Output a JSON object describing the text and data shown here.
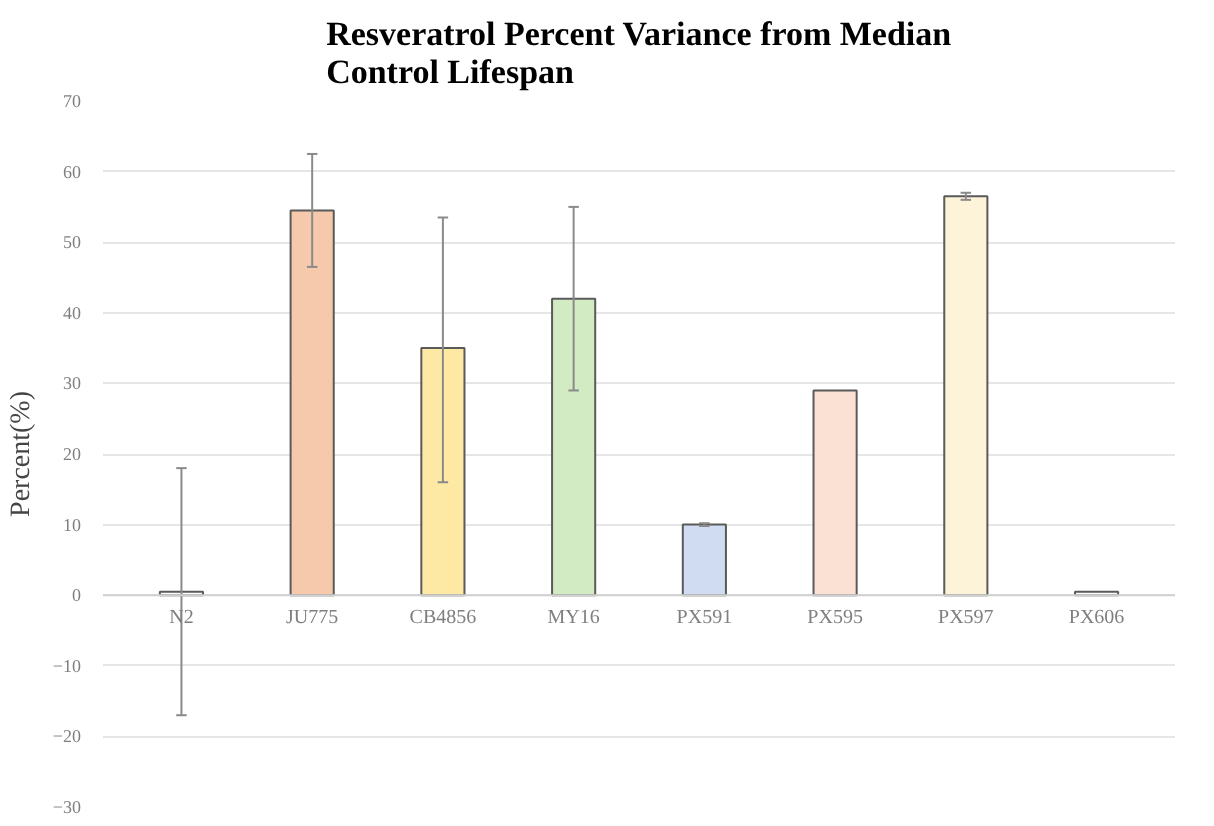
{
  "chart_data": {
    "type": "bar",
    "title": "Resveratrol Percent Variance from Median\nControl Lifespan",
    "ylabel": "Percent(%)",
    "categories": [
      "N2",
      "JU775",
      "CB4856",
      "MY16",
      "PX591",
      "PX595",
      "PX597",
      "PX606"
    ],
    "values": [
      0.5,
      54.5,
      35,
      42,
      10,
      29,
      56.5,
      0.5
    ],
    "errors": [
      [
        -17,
        18
      ],
      [
        46.5,
        62.5
      ],
      [
        16,
        53.5
      ],
      [
        29,
        55
      ],
      [
        9.8,
        10.2
      ],
      null,
      [
        56,
        57
      ],
      null
    ],
    "colors": [
      "#ffffff",
      "#f6c9ad",
      "#fde9a3",
      "#d3ebc2",
      "#cfdcf2",
      "#fbe1d3",
      "#fdf3d8",
      "#ffffff"
    ],
    "ylim": [
      -30,
      70
    ],
    "yticks": [
      -30,
      -20,
      -10,
      0,
      10,
      20,
      30,
      40,
      50,
      60,
      70
    ],
    "grid": "y"
  }
}
